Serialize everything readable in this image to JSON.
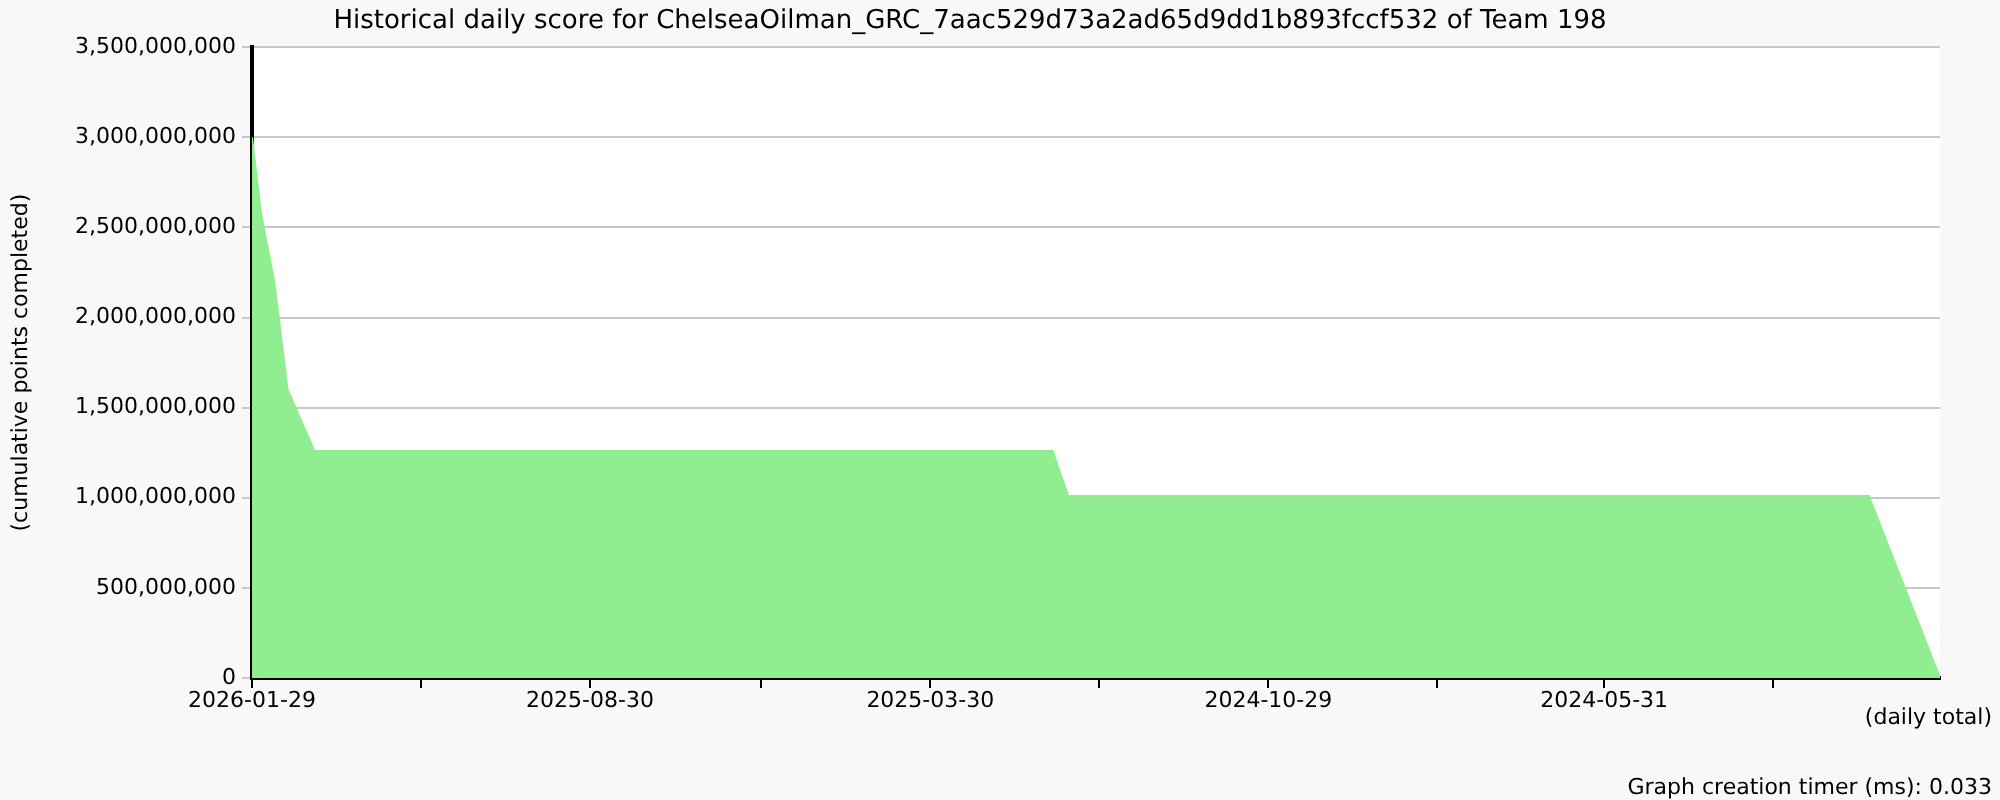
{
  "chart_data": {
    "type": "area",
    "title": "Historical daily score for ChelseaOilman_GRC_7aac529d73a2ad65d9dd1b893fccf532 of Team 198",
    "xlabel": "(daily total)",
    "ylabel": "(cumulative points completed)",
    "annotations": [
      "Graph creation timer (ms): 0.033"
    ],
    "x": [
      "2026-01-29",
      "2026-01-25",
      "2026-01-19",
      "2026-01-13",
      "2026-01-07",
      "2026-01-01",
      "2025-02-03",
      "2025-01-27",
      "2024-02-02",
      "2024-01-01"
    ],
    "series": [
      {
        "color": "#90ee90",
        "values": [
          3000000000,
          2580000000,
          2200000000,
          1600000000,
          1430000000,
          1260000000,
          1260000000,
          1010000000,
          1010000000,
          0
        ]
      }
    ],
    "xlim": [
      "2026-01-29",
      "2024-01-01"
    ],
    "xticks": [
      "2026-01-29",
      {
        "value": "2025-11-14",
        "label": null
      },
      "2025-08-30",
      {
        "value": "2025-06-14",
        "label": null
      },
      "2025-03-30",
      {
        "value": "2025-01-13",
        "label": null
      },
      "2024-10-29",
      {
        "value": "2024-08-14",
        "label": null
      },
      "2024-05-31",
      {
        "value": "2024-03-16",
        "label": null
      }
    ],
    "ylim": [
      0,
      3500000000
    ],
    "yticks": [
      0,
      {
        "value": 500000000,
        "label": "500,000,000"
      },
      {
        "value": 1000000000,
        "label": "1,000,000,000"
      },
      {
        "value": 1500000000,
        "label": "1,500,000,000"
      },
      {
        "value": 2000000000,
        "label": "2,000,000,000"
      },
      {
        "value": 2500000000,
        "label": "2,500,000,000"
      },
      {
        "value": 3000000000,
        "label": "3,000,000,000"
      },
      {
        "value": 3500000000,
        "label": "3,500,000,000"
      }
    ],
    "grid": "y",
    "legend": false
  }
}
